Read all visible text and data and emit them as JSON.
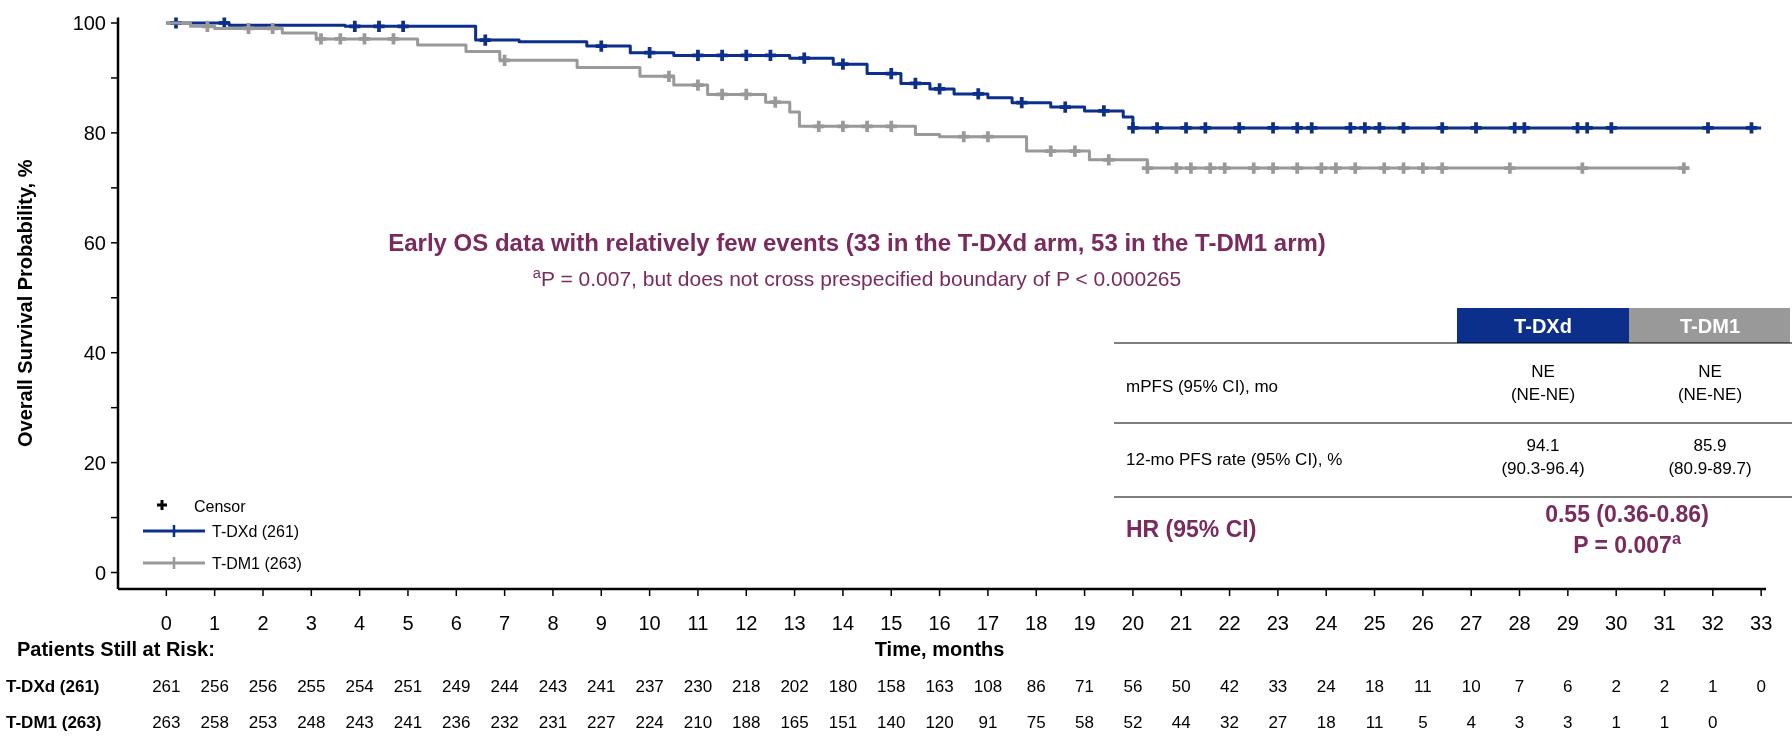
{
  "chart_data": {
    "type": "step",
    "xlabel": "Time, months",
    "ylabel": "Overall Survival Probability, %",
    "xlim": [
      -1,
      33.1
    ],
    "ylim": [
      -3,
      101
    ],
    "xticks": [
      0,
      1,
      2,
      3,
      4,
      5,
      6,
      7,
      8,
      9,
      10,
      11,
      12,
      13,
      14,
      15,
      16,
      17,
      18,
      19,
      20,
      21,
      22,
      23,
      24,
      25,
      26,
      27,
      28,
      29,
      30,
      31,
      32,
      33
    ],
    "yticks": [
      0,
      {
        "value": 10,
        "label": null
      },
      20,
      {
        "value": 30,
        "label": null
      },
      40,
      {
        "value": 50,
        "label": null
      },
      60,
      {
        "value": 70,
        "label": null
      },
      80,
      {
        "value": 90,
        "label": null
      },
      100
    ],
    "legend": "bottom left",
    "legend_title": "Censor",
    "series": [
      {
        "name": "T-DXd (261)",
        "color": "#0b2f8a",
        "marker": "none",
        "x": [
          0,
          1.3,
          3.7,
          6.4,
          7.3,
          8.7,
          9.6,
          10.5,
          12.9,
          13.8,
          14.5,
          15.2,
          15.8,
          16.3,
          17.0,
          17.5,
          18.3,
          19.0,
          19.8,
          20.0,
          33.0
        ],
        "values": [
          100,
          99.6,
          99.4,
          96.9,
          96.6,
          95.8,
          94.6,
          94.1,
          93.6,
          92.5,
          90.8,
          89.0,
          88.0,
          87.1,
          86.4,
          85.5,
          84.7,
          84.0,
          82.9,
          80.9,
          80.9
        ]
      },
      {
        "color": "#0b2f8a",
        "type": "scatter",
        "marker": "cross",
        "x": [
          0.2,
          1.2,
          3.9,
          4.4,
          4.9,
          6.6,
          9.0,
          10.0,
          11.0,
          11.5,
          12.0,
          12.5,
          13.2,
          14.0,
          15.0,
          15.5,
          16.0,
          16.8,
          17.7,
          18.6,
          19.4,
          20.0,
          20.5,
          21.1,
          21.5,
          22.2,
          22.9,
          23.4,
          23.7,
          24.5,
          24.8,
          25.1,
          25.6,
          26.4,
          27.1,
          27.9,
          28.1,
          29.2,
          29.4,
          29.9,
          31.9,
          32.8
        ],
        "values": [
          100,
          100,
          99.4,
          99.4,
          99.4,
          96.9,
          95.8,
          94.6,
          94.1,
          94.1,
          94.1,
          94.1,
          93.6,
          92.5,
          90.8,
          89.0,
          88.0,
          87.1,
          85.5,
          84.7,
          84.0,
          80.9,
          80.9,
          80.9,
          80.9,
          80.9,
          80.9,
          80.9,
          80.9,
          80.9,
          80.9,
          80.9,
          80.9,
          80.9,
          80.9,
          80.9,
          80.9,
          80.9,
          80.9,
          80.9,
          80.9,
          80.9
        ]
      },
      {
        "name": "T-DM1 (263)",
        "color": "#999999",
        "marker": "none",
        "x": [
          0,
          0.5,
          1.0,
          2.4,
          3.1,
          5.2,
          6.2,
          6.9,
          8.5,
          9.8,
          10.5,
          11.2,
          12.4,
          12.9,
          13.1,
          15.5,
          16.0,
          17.8,
          19.1,
          20.3,
          31.5
        ],
        "values": [
          100,
          99.4,
          99.0,
          98.2,
          97.1,
          96.0,
          94.8,
          93.2,
          91.9,
          90.3,
          88.7,
          87.0,
          85.6,
          83.8,
          81.2,
          79.7,
          79.3,
          76.7,
          75.1,
          73.6,
          73.6
        ]
      },
      {
        "color": "#999999",
        "type": "scatter",
        "marker": "cross",
        "x": [
          0.85,
          1.7,
          2.2,
          3.2,
          3.6,
          4.1,
          4.7,
          7.0,
          10.4,
          11.0,
          11.5,
          12.0,
          12.6,
          13.5,
          14.0,
          14.5,
          15.0,
          16.5,
          17.0,
          18.3,
          18.8,
          19.5,
          20.3,
          20.9,
          21.2,
          21.6,
          21.9,
          22.5,
          22.9,
          23.4,
          23.9,
          24.2,
          24.6,
          25.2,
          25.6,
          26.0,
          26.4,
          27.8,
          29.3,
          31.4
        ],
        "values": [
          99.4,
          99.0,
          99.0,
          97.1,
          97.1,
          97.1,
          97.1,
          93.2,
          90.3,
          88.7,
          87.0,
          87.0,
          85.6,
          81.2,
          81.2,
          81.2,
          81.2,
          79.3,
          79.3,
          76.7,
          76.7,
          75.1,
          73.6,
          73.6,
          73.6,
          73.6,
          73.6,
          73.6,
          73.6,
          73.6,
          73.6,
          73.6,
          73.6,
          73.6,
          73.6,
          73.6,
          73.6,
          73.6,
          73.6,
          73.6
        ]
      }
    ],
    "annotations": [
      "Early OS data with relatively few events (33 in the T-DXd arm, 53 in the T-DM1 arm)",
      "$^{a}$P = 0.007, but does not cross prespecified boundary of P < 0.000265",
      "Patients Still at Risk:",
      "T-DXd (261)",
      "261 256 256 255 254 251 249 244 243 241 237 230 218 202 180 158 163 108 86 71 56 50 42 33 24 18 11 10 7 6 2 2 1 0",
      "T-DM1 (263)",
      "263 258 253 248 243 241 236 232 231 227 224 210 188 165 151 140 120 91 75 58 52 44 32 27 18 11 5 4 3 3 1 1 0",
      "T-DXd",
      "T-DM1",
      "mPFS (95% CI), mo",
      "NE\n(NE-NE)",
      "NE\n(NE-NE)",
      "12-mo PFS rate (95% CI), %",
      "94.1\n(90.3-96.4)",
      "85.9\n(80.9-89.7)",
      "HR (95% CI)",
      "0.55 (0.36-0.86)",
      "P = 0.007$^{a}$"
    ]
  }
}
